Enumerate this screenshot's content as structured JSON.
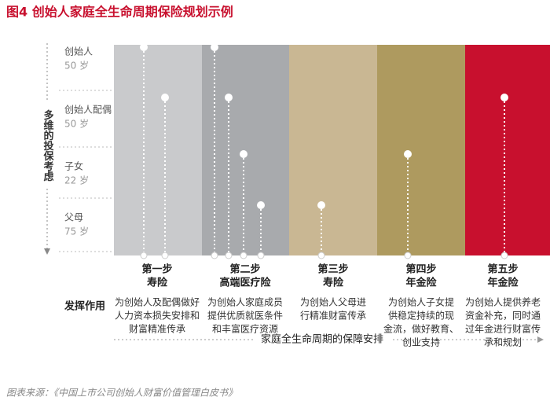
{
  "title": "图4 创始人家庭全生命周期保险规划示例",
  "axis_label": "多维的投保考虑",
  "rows": [
    {
      "name": "创始人",
      "age": "50 岁"
    },
    {
      "name": "创始人配偶",
      "age": "50 岁"
    },
    {
      "name": "子女",
      "age": "22 岁"
    },
    {
      "name": "父母",
      "age": "75 岁"
    }
  ],
  "steps": [
    {
      "step": "第一步",
      "product": "寿险",
      "desc": [
        "为创始人及配偶做好",
        "人力资本损失安排和",
        "财富精准传承"
      ]
    },
    {
      "step": "第二步",
      "product": "高端医疗险",
      "desc": [
        "为创始人家庭成员",
        "提供优质就医条件",
        "和丰富医疗资源"
      ]
    },
    {
      "step": "第三步",
      "product": "寿险",
      "desc": [
        "为创始人父母进",
        "行精准财富传承"
      ]
    },
    {
      "step": "第四步",
      "product": "年金险",
      "desc": [
        "为创始人子女提",
        "供稳定持续的现",
        "金流，做好教育、",
        "创业支持"
      ]
    },
    {
      "step": "第五步",
      "product": "年金险",
      "desc": [
        "为创始人提供养老",
        "资金补充，同时通",
        "过年金进行财富传",
        "承和规划"
      ]
    }
  ],
  "role_label": "发挥作用",
  "timeline_label": "家庭全生命周期的保障安排",
  "source": "图表来源：《中国上市公司创始人财富价值管理白皮书》"
}
